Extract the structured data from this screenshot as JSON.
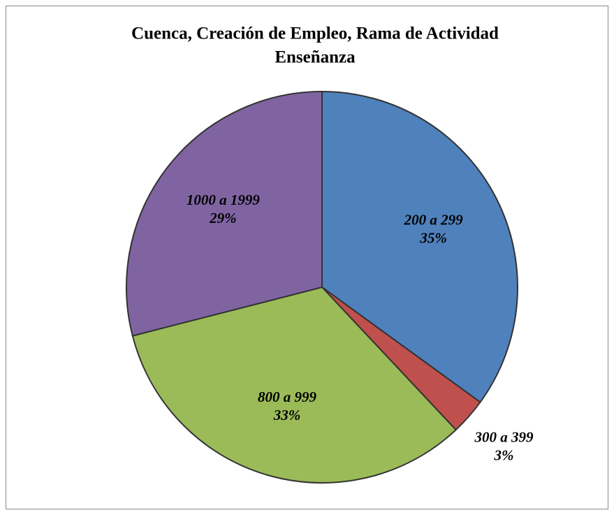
{
  "chart_data": {
    "type": "pie",
    "title": [
      "Cuenca,  Creación de Empleo, Rama de Actividad",
      "Enseñanza"
    ],
    "categories": [
      "200 a 299",
      "300 a 399",
      "800 a 999",
      "1000 a 1999"
    ],
    "values": [
      35,
      3,
      33,
      29
    ],
    "value_labels": [
      "35%",
      "3%",
      "33%",
      "29%"
    ],
    "colors": [
      "#4f81bd",
      "#c0504d",
      "#9bbb59",
      "#8064a2"
    ]
  }
}
